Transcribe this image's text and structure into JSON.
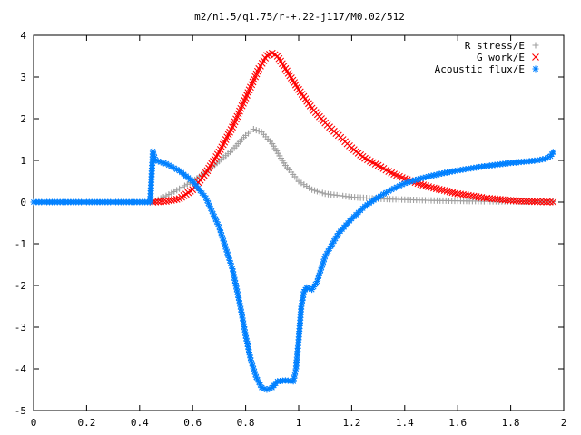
{
  "chart_data": {
    "type": "scatter",
    "title": "m2/n1.5/q1.75/r-+.22-j117/M0.02/512",
    "xlabel": "",
    "ylabel": "",
    "xlim": [
      0,
      2
    ],
    "ylim": [
      -5,
      4
    ],
    "x_ticks": [
      "0",
      "0.2",
      "0.4",
      "0.6",
      "0.8",
      "1",
      "1.2",
      "1.4",
      "1.6",
      "1.8",
      "2"
    ],
    "y_ticks": [
      "4",
      "3",
      "2",
      "1",
      "0",
      "-1",
      "-2",
      "-3",
      "-4",
      "-5"
    ],
    "grid": false,
    "legend_position": "top-right",
    "series": [
      {
        "name": "R stress/E",
        "marker": "plus",
        "color": "#a0a0a0",
        "points": [
          [
            0.45,
            0.0
          ],
          [
            0.5,
            0.15
          ],
          [
            0.55,
            0.32
          ],
          [
            0.6,
            0.5
          ],
          [
            0.65,
            0.72
          ],
          [
            0.7,
            0.98
          ],
          [
            0.75,
            1.25
          ],
          [
            0.8,
            1.6
          ],
          [
            0.83,
            1.75
          ],
          [
            0.86,
            1.68
          ],
          [
            0.9,
            1.4
          ],
          [
            0.95,
            0.88
          ],
          [
            1.0,
            0.5
          ],
          [
            1.05,
            0.3
          ],
          [
            1.1,
            0.2
          ],
          [
            1.2,
            0.12
          ],
          [
            1.3,
            0.08
          ],
          [
            1.4,
            0.06
          ],
          [
            1.5,
            0.04
          ],
          [
            1.6,
            0.03
          ],
          [
            1.7,
            0.02
          ],
          [
            1.8,
            0.015
          ],
          [
            1.9,
            0.01
          ],
          [
            1.96,
            0.01
          ]
        ]
      },
      {
        "name": "G work/E",
        "marker": "cross",
        "color": "#ff0000",
        "points": [
          [
            0.45,
            0.0
          ],
          [
            0.5,
            0.02
          ],
          [
            0.55,
            0.08
          ],
          [
            0.6,
            0.3
          ],
          [
            0.65,
            0.7
          ],
          [
            0.7,
            1.2
          ],
          [
            0.75,
            1.8
          ],
          [
            0.8,
            2.5
          ],
          [
            0.85,
            3.2
          ],
          [
            0.88,
            3.52
          ],
          [
            0.9,
            3.57
          ],
          [
            0.92,
            3.5
          ],
          [
            0.95,
            3.2
          ],
          [
            1.0,
            2.7
          ],
          [
            1.05,
            2.25
          ],
          [
            1.1,
            1.9
          ],
          [
            1.15,
            1.6
          ],
          [
            1.2,
            1.3
          ],
          [
            1.25,
            1.05
          ],
          [
            1.3,
            0.88
          ],
          [
            1.35,
            0.7
          ],
          [
            1.4,
            0.56
          ],
          [
            1.45,
            0.45
          ],
          [
            1.5,
            0.35
          ],
          [
            1.55,
            0.28
          ],
          [
            1.6,
            0.2
          ],
          [
            1.65,
            0.15
          ],
          [
            1.7,
            0.1
          ],
          [
            1.75,
            0.07
          ],
          [
            1.8,
            0.04
          ],
          [
            1.85,
            0.02
          ],
          [
            1.9,
            0.01
          ],
          [
            1.96,
            0.0
          ]
        ]
      },
      {
        "name": "Acoustic flux/E",
        "marker": "star",
        "color": "#0080ff",
        "points": [
          [
            0.0,
            0.0
          ],
          [
            0.05,
            0.0
          ],
          [
            0.1,
            0.0
          ],
          [
            0.15,
            0.0
          ],
          [
            0.2,
            0.0
          ],
          [
            0.25,
            0.0
          ],
          [
            0.3,
            0.0
          ],
          [
            0.35,
            0.0
          ],
          [
            0.4,
            0.0
          ],
          [
            0.44,
            0.0
          ],
          [
            0.45,
            1.22
          ],
          [
            0.46,
            1.0
          ],
          [
            0.5,
            0.92
          ],
          [
            0.55,
            0.75
          ],
          [
            0.6,
            0.5
          ],
          [
            0.65,
            0.1
          ],
          [
            0.7,
            -0.6
          ],
          [
            0.75,
            -1.6
          ],
          [
            0.78,
            -2.5
          ],
          [
            0.8,
            -3.2
          ],
          [
            0.82,
            -3.8
          ],
          [
            0.84,
            -4.2
          ],
          [
            0.86,
            -4.45
          ],
          [
            0.88,
            -4.5
          ],
          [
            0.9,
            -4.45
          ],
          [
            0.92,
            -4.3
          ],
          [
            0.95,
            -4.28
          ],
          [
            0.98,
            -4.3
          ],
          [
            0.99,
            -4.0
          ],
          [
            1.0,
            -3.3
          ],
          [
            1.01,
            -2.5
          ],
          [
            1.02,
            -2.15
          ],
          [
            1.03,
            -2.05
          ],
          [
            1.05,
            -2.1
          ],
          [
            1.07,
            -1.9
          ],
          [
            1.1,
            -1.3
          ],
          [
            1.15,
            -0.75
          ],
          [
            1.2,
            -0.4
          ],
          [
            1.25,
            -0.1
          ],
          [
            1.3,
            0.12
          ],
          [
            1.35,
            0.3
          ],
          [
            1.4,
            0.45
          ],
          [
            1.45,
            0.55
          ],
          [
            1.5,
            0.63
          ],
          [
            1.55,
            0.7
          ],
          [
            1.6,
            0.76
          ],
          [
            1.65,
            0.81
          ],
          [
            1.7,
            0.86
          ],
          [
            1.75,
            0.9
          ],
          [
            1.8,
            0.94
          ],
          [
            1.85,
            0.97
          ],
          [
            1.9,
            1.0
          ],
          [
            1.93,
            1.04
          ],
          [
            1.95,
            1.1
          ],
          [
            1.96,
            1.2
          ]
        ]
      }
    ]
  }
}
